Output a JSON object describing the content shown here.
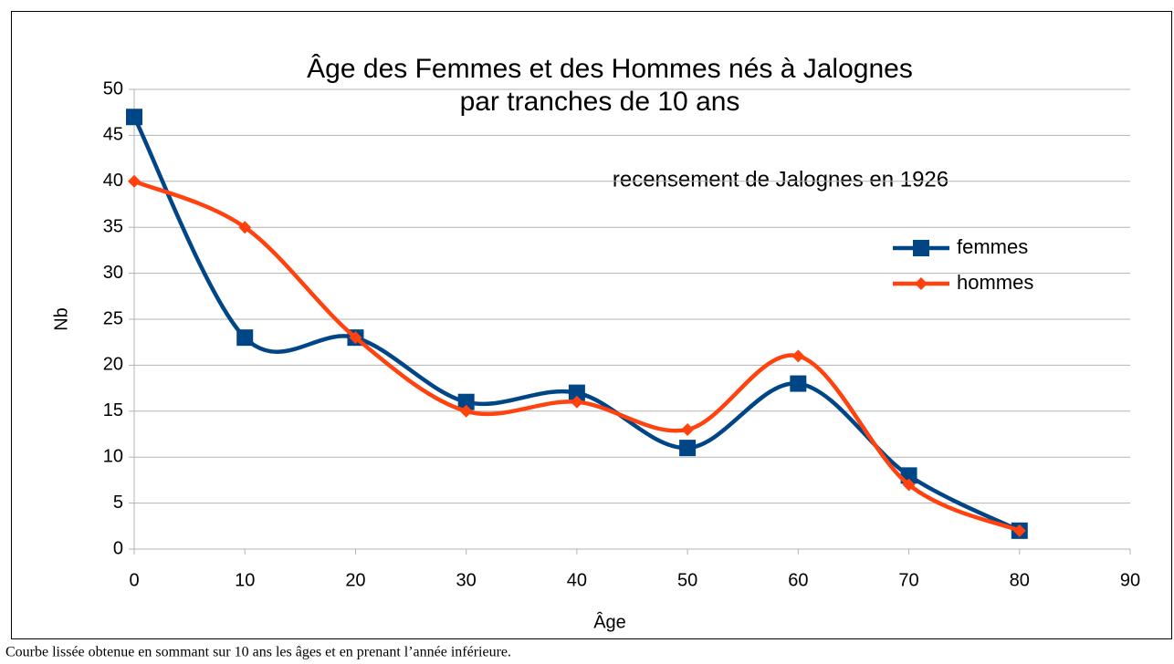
{
  "chart_data": {
    "type": "line",
    "title": "Âge des Femmes et des Hommes nés à Jalognes",
    "subtitle": "par tranches de 10 ans",
    "annotation": "recensement de Jalognes en 1926",
    "x_label": "Âge",
    "y_label": "Nb",
    "x": [
      0,
      10,
      20,
      30,
      40,
      50,
      60,
      70,
      80
    ],
    "series": [
      {
        "name": "femmes",
        "color": "#004586",
        "marker": "square",
        "values": [
          47,
          23,
          23,
          16,
          17,
          11,
          18,
          8,
          2
        ]
      },
      {
        "name": "hommes",
        "color": "#ff420e",
        "marker": "diamond",
        "values": [
          40,
          35,
          23,
          15,
          16,
          13,
          21,
          7,
          2
        ]
      }
    ],
    "smooth": true,
    "xlim": [
      0,
      90
    ],
    "xticks": [
      0,
      10,
      20,
      30,
      40,
      50,
      60,
      70,
      80,
      90
    ],
    "ylim": [
      0,
      50
    ],
    "yticks": [
      0,
      5,
      10,
      15,
      20,
      25,
      30,
      35,
      40,
      45,
      50
    ],
    "grid": true,
    "legend": "right",
    "caption": "Courbe lissée obtenue en sommant sur 10 ans les âges et en prenant l’année inférieure."
  }
}
